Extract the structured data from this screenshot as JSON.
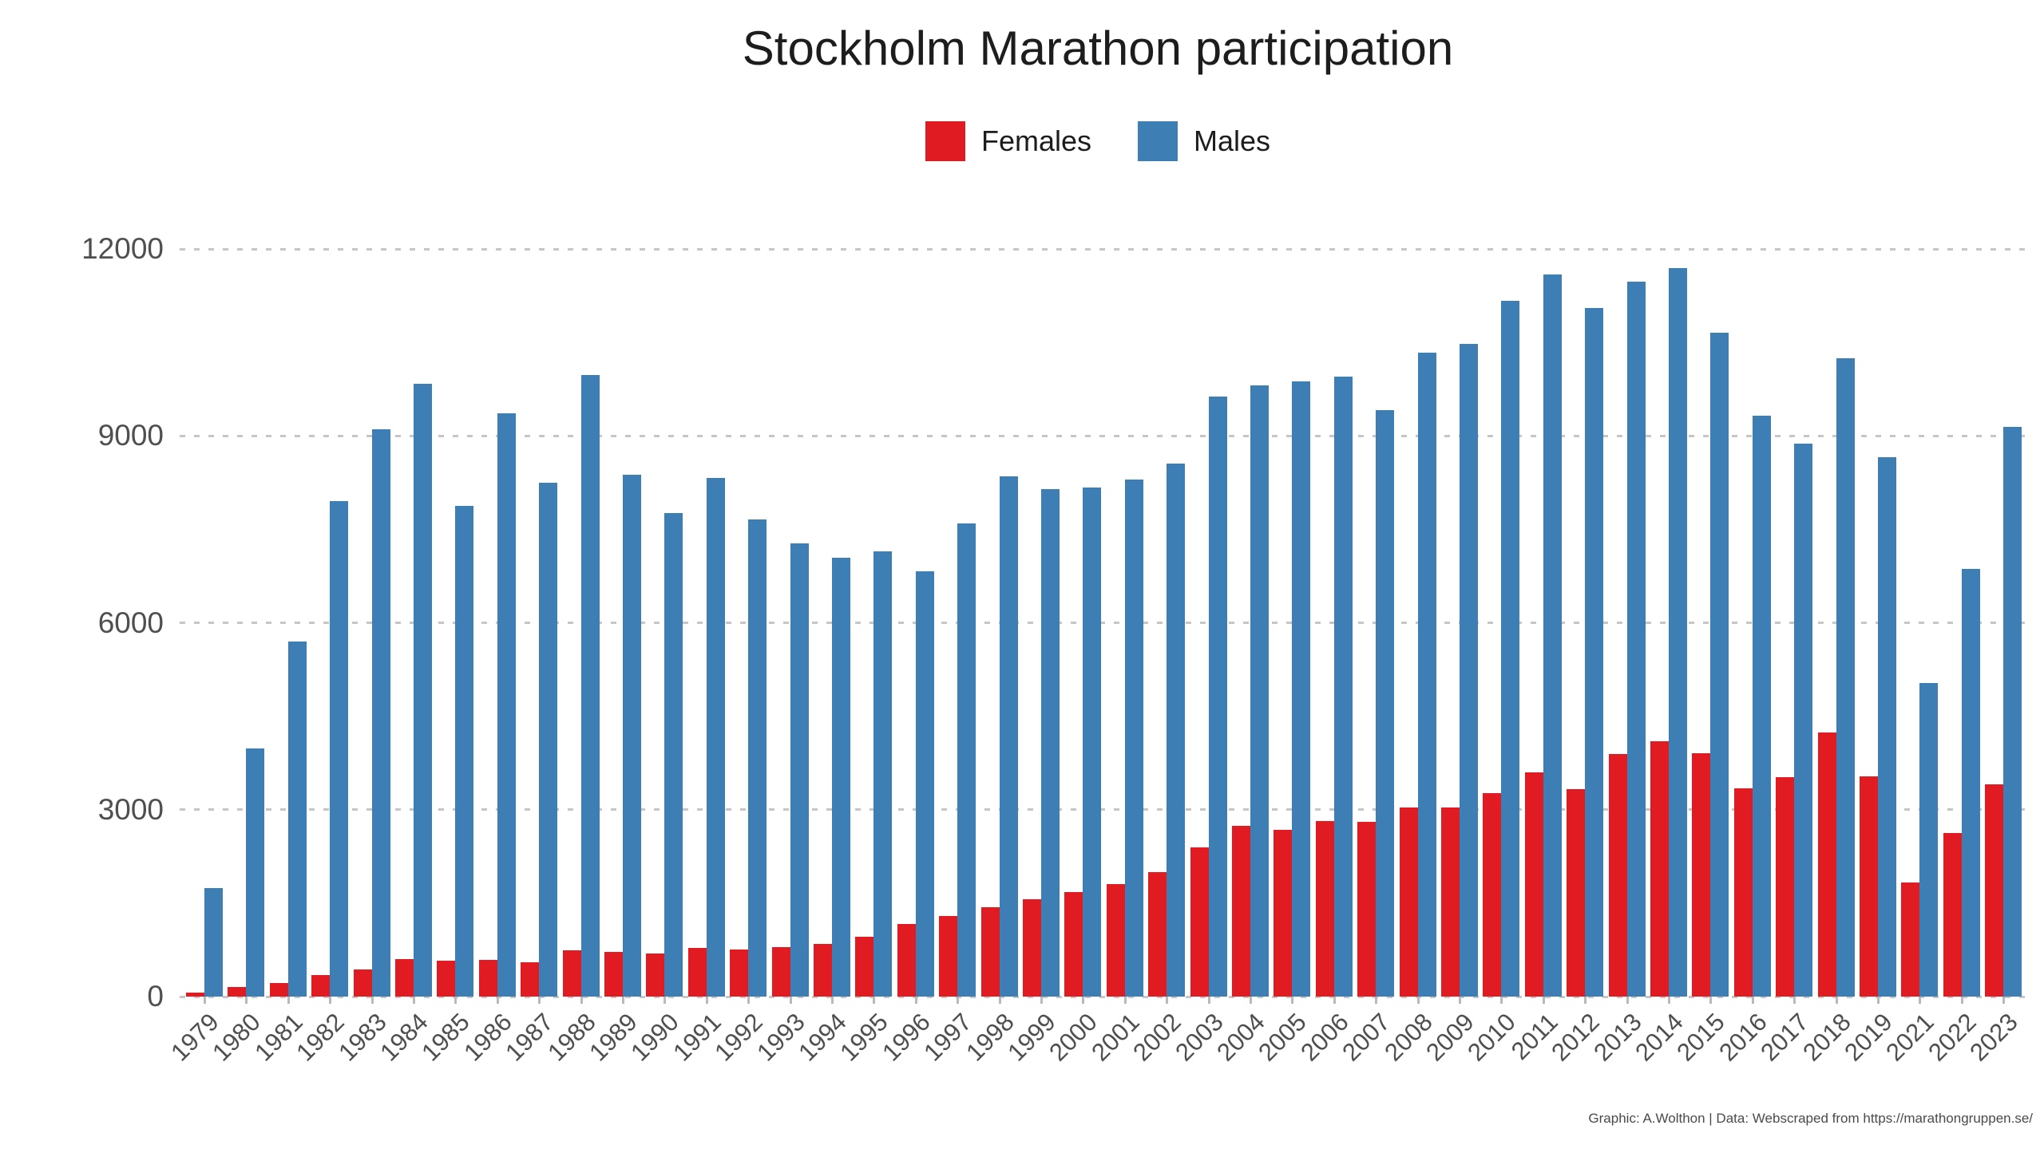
{
  "title": "Stockholm Marathon participation",
  "legend": {
    "females_label": "Females",
    "males_label": "Males"
  },
  "colors": {
    "female": "#e11b22",
    "male": "#3d7eb5",
    "grid": "#c6c6c6",
    "axis_text": "#4f4f4f",
    "title_text": "#1d1d1d"
  },
  "footer": "Graphic: A.Wolthon | Data: Webscraped from https://marathongruppen.se/",
  "chart_data": {
    "type": "bar",
    "title": "Stockholm Marathon participation",
    "xlabel": "",
    "ylabel": "",
    "ylim": [
      0,
      12000
    ],
    "y_ticks": [
      0,
      3000,
      6000,
      9000,
      12000
    ],
    "grid": "horizontal dotted",
    "legend_position": "top-center",
    "categories": [
      "1979",
      "1980",
      "1981",
      "1982",
      "1983",
      "1984",
      "1985",
      "1986",
      "1987",
      "1988",
      "1989",
      "1990",
      "1991",
      "1992",
      "1993",
      "1994",
      "1995",
      "1996",
      "1997",
      "1998",
      "1999",
      "2000",
      "2001",
      "2002",
      "2003",
      "2004",
      "2005",
      "2006",
      "2007",
      "2008",
      "2009",
      "2010",
      "2011",
      "2012",
      "2013",
      "2014",
      "2015",
      "2016",
      "2017",
      "2018",
      "2019",
      "2021",
      "2022",
      "2023"
    ],
    "series": [
      {
        "name": "Females",
        "color": "#e11b22",
        "values": [
          60,
          160,
          220,
          340,
          440,
          600,
          575,
          590,
          550,
          740,
          720,
          690,
          780,
          760,
          800,
          840,
          960,
          1160,
          1290,
          1430,
          1560,
          1680,
          1800,
          2000,
          2395,
          2745,
          2680,
          2820,
          2805,
          3040,
          3040,
          3270,
          3600,
          3330,
          3890,
          4100,
          3910,
          3340,
          3520,
          4240,
          3530,
          1830,
          2620,
          3410
        ]
      },
      {
        "name": "Males",
        "color": "#3d7eb5",
        "values": [
          1740,
          3980,
          5700,
          7950,
          9100,
          9830,
          7870,
          9360,
          8250,
          9980,
          8380,
          7760,
          8320,
          7660,
          7280,
          7050,
          7140,
          6820,
          7590,
          8350,
          8150,
          8170,
          8300,
          8560,
          9630,
          9810,
          9870,
          9950,
          9410,
          10330,
          10480,
          11170,
          11590,
          11050,
          11470,
          11690,
          10650,
          9320,
          8870,
          10250,
          8660,
          5030,
          6870,
          9150
        ]
      }
    ]
  }
}
